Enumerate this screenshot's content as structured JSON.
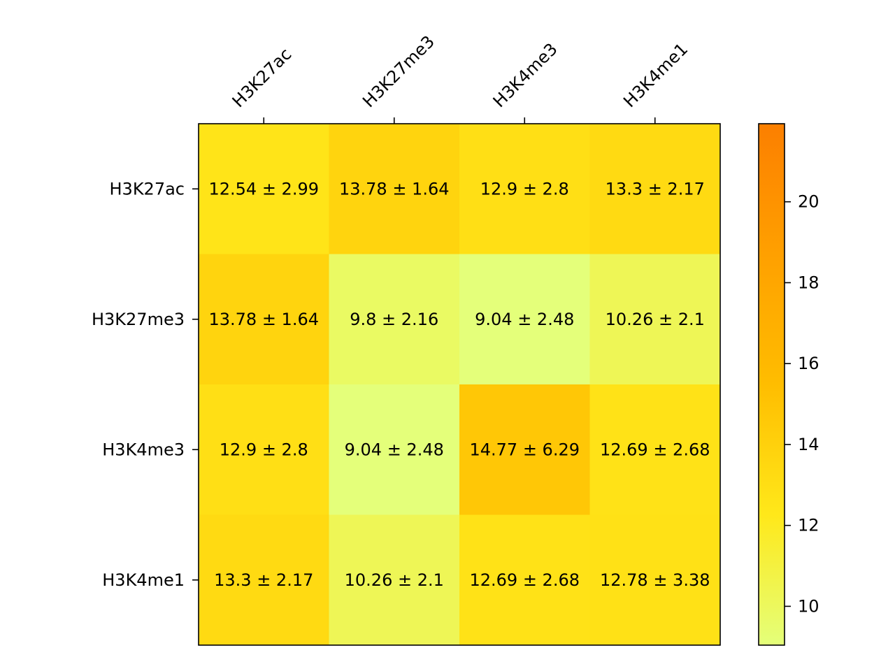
{
  "chart_data": {
    "type": "heatmap",
    "title": "",
    "xlabel": "",
    "ylabel": "",
    "x_categories": [
      "H3K27ac",
      "H3K27me3",
      "H3K4me3",
      "H3K4me1"
    ],
    "y_categories": [
      "H3K27ac",
      "H3K27me3",
      "H3K4me3",
      "H3K4me1"
    ],
    "values": [
      [
        12.54,
        13.78,
        12.9,
        13.3
      ],
      [
        13.78,
        9.8,
        9.04,
        10.26
      ],
      [
        12.9,
        9.04,
        14.77,
        12.69
      ],
      [
        13.3,
        10.26,
        12.69,
        12.78
      ]
    ],
    "cell_labels": [
      [
        "12.54 ± 2.99",
        "13.78 ± 1.64",
        "12.9 ± 2.8",
        "13.3 ± 2.17"
      ],
      [
        "13.78 ± 1.64",
        "9.8 ± 2.16",
        "9.04 ± 2.48",
        "10.26 ± 2.1"
      ],
      [
        "12.9 ± 2.8",
        "9.04 ± 2.48",
        "14.77 ± 6.29",
        "12.69 ± 2.68"
      ],
      [
        "13.3 ± 2.17",
        "10.26 ± 2.1",
        "12.69 ± 2.68",
        "12.78 ± 3.38"
      ]
    ],
    "x_axis_position": "top",
    "colormap": "Wistia",
    "colorbar": {
      "range": [
        9.04,
        21.93
      ],
      "ticks": [
        10,
        12,
        14,
        16,
        18,
        20
      ],
      "tick_labels": [
        "10",
        "12",
        "14",
        "16",
        "18",
        "20"
      ]
    },
    "grid": false,
    "legend": "none"
  }
}
